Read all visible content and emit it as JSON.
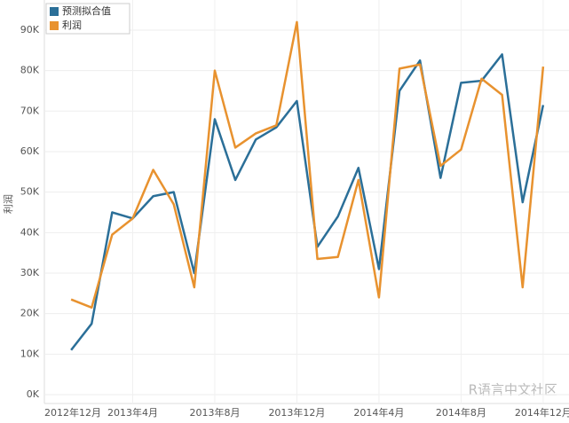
{
  "chart_data": {
    "type": "line",
    "y_label": "利润",
    "x": [
      "2013-01",
      "2013-02",
      "2013-03",
      "2013-04",
      "2013-05",
      "2013-06",
      "2013-07",
      "2013-08",
      "2013-09",
      "2013-10",
      "2013-11",
      "2013-12",
      "2014-01",
      "2014-02",
      "2014-03",
      "2014-04",
      "2014-05",
      "2014-06",
      "2014-07",
      "2014-08",
      "2014-09",
      "2014-10",
      "2014-11",
      "2014-12"
    ],
    "series": [
      {
        "name": "预测拟合值",
        "color": "#2b6f98",
        "values": [
          11000,
          17500,
          45000,
          43500,
          49000,
          50000,
          30000,
          68000,
          53000,
          63000,
          66000,
          72500,
          36500,
          44000,
          56000,
          31000,
          75000,
          82500,
          53500,
          77000,
          77500,
          84000,
          47500,
          71500
        ]
      },
      {
        "name": "利润",
        "color": "#e8922f",
        "values": [
          23500,
          21500,
          39500,
          43500,
          55500,
          47000,
          26500,
          80000,
          61000,
          64500,
          66500,
          92000,
          33500,
          34000,
          53000,
          24000,
          80500,
          81500,
          56500,
          60500,
          78000,
          74000,
          26500,
          81000
        ]
      }
    ],
    "xlim": [
      "2012-12",
      "2015-01"
    ],
    "xticks": [
      {
        "value": "2012-12",
        "label": "2012年12月"
      },
      {
        "value": "2013-04",
        "label": "2013年4月"
      },
      {
        "value": "2013-08",
        "label": "2013年8月"
      },
      {
        "value": "2013-12",
        "label": "2013年12月"
      },
      {
        "value": "2014-04",
        "label": "2014年4月"
      },
      {
        "value": "2014-08",
        "label": "2014年8月"
      },
      {
        "value": "2014-12",
        "label": "2014年12月"
      }
    ],
    "ylim": [
      0,
      97000
    ],
    "yticks": [
      {
        "value": 0,
        "label": "0K"
      },
      {
        "value": 10000,
        "label": "10K"
      },
      {
        "value": 20000,
        "label": "20K"
      },
      {
        "value": 30000,
        "label": "30K"
      },
      {
        "value": 40000,
        "label": "40K"
      },
      {
        "value": 50000,
        "label": "50K"
      },
      {
        "value": 60000,
        "label": "60K"
      },
      {
        "value": 70000,
        "label": "70K"
      },
      {
        "value": 80000,
        "label": "80K"
      },
      {
        "value": 90000,
        "label": "90K"
      }
    ],
    "grid": true,
    "legend": "top-left",
    "watermark": "R语言中文社区"
  }
}
